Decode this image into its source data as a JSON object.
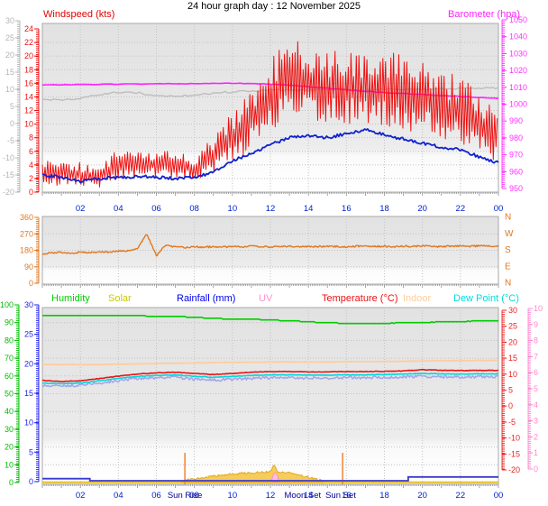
{
  "title": "24 hour graph day : 12 November 2025",
  "labels": {
    "windspeed": "Windspeed (kts)",
    "barometer": "Barometer (hpa)"
  },
  "legend": {
    "items": [
      {
        "label": "Humidity",
        "color": "#00cc00"
      },
      {
        "label": "Solar",
        "color": "#c8c800"
      },
      {
        "label": "Rainfall (mm)",
        "color": "#0000ee"
      },
      {
        "label": "UV",
        "color": "#ff8fd0"
      },
      {
        "label": "Temperature (°C)",
        "color": "#ee1111"
      },
      {
        "label": "Indoor",
        "color": "#ffcc99"
      },
      {
        "label": "Dew Point (°C)",
        "color": "#00dddd"
      }
    ]
  },
  "x_axis": {
    "hour_labels": [
      "02",
      "04",
      "06",
      "08",
      "10",
      "12",
      "14",
      "16",
      "18",
      "20",
      "22",
      "00"
    ],
    "color": "#0022cc"
  },
  "events": [
    {
      "label": "Sun Rise",
      "hour": 7.5
    },
    {
      "label": "Moon Set",
      "hour": 13.7
    },
    {
      "label": "Sun Set",
      "hour": 15.7
    }
  ],
  "sun_marker_hours": [
    7.5,
    15.8
  ],
  "chart_data": [
    {
      "type": "line",
      "panel": "top",
      "x_range": [
        0,
        24
      ],
      "x_unit": "hour",
      "axes": {
        "windspeed_kts": {
          "min": 0,
          "max": 24,
          "step": 2,
          "color": "#ee1111"
        },
        "outer_left_unlabeled": {
          "min": -20,
          "max": 30,
          "step": 5,
          "color": "#b5b5b5"
        },
        "barometer_hpa": {
          "min": 950,
          "max": 1050,
          "step": 10,
          "color": "#ff33ff"
        }
      },
      "series": [
        {
          "name": "windspeed_gust",
          "unit": "kts",
          "color": "#ee1111",
          "hourly_max": [
            5,
            4.5,
            4.5,
            4,
            6.5,
            6,
            6.5,
            6,
            5.5,
            8,
            12,
            16,
            20,
            23,
            22,
            20.5,
            21.5,
            20,
            21,
            20,
            19.5,
            18,
            17,
            15,
            11
          ],
          "hourly_min": [
            0.5,
            0.5,
            0.5,
            0.5,
            1,
            1.5,
            2,
            2,
            1.5,
            2.5,
            4,
            5.5,
            8,
            10,
            10,
            9.5,
            9.5,
            9.5,
            9,
            8.5,
            8,
            7.5,
            6.5,
            5,
            3.5
          ]
        },
        {
          "name": "windspeed_average",
          "unit": "kts",
          "color": "#1122cc",
          "hourly": [
            2.5,
            2.2,
            1.6,
            2.0,
            2.1,
            2.3,
            2.2,
            2.0,
            2.2,
            2.9,
            4.6,
            5.6,
            7.0,
            8.0,
            8.3,
            8.0,
            8.6,
            9.2,
            8.4,
            7.8,
            7.2,
            6.6,
            6.2,
            5.2,
            4.3
          ]
        },
        {
          "name": "barometer",
          "unit": "hpa",
          "color": "#ff22ff",
          "hourly": [
            1011.5,
            1011.5,
            1011.6,
            1011.8,
            1011.8,
            1011.9,
            1012.0,
            1012.1,
            1012.2,
            1012.3,
            1012.4,
            1012.2,
            1011.8,
            1011.2,
            1010.4,
            1009.5,
            1008.5,
            1007.6,
            1006.9,
            1006.3,
            1005.7,
            1005.1,
            1004.6,
            1004.0,
            1003.5
          ]
        },
        {
          "name": "unlabeled_gray_line",
          "unit": "kts_scale",
          "color": "#bdbdbd",
          "hourly": [
            13.7,
            13.5,
            13.8,
            14.3,
            14.7,
            14.6,
            14.2,
            14.1,
            14.2,
            14.6,
            14.7,
            14.9,
            15.0,
            15.0,
            15.0,
            15.1,
            15.1,
            15.0,
            15.1,
            15.1,
            15.1,
            15.2,
            15.2,
            15.3,
            15.3
          ]
        }
      ]
    },
    {
      "type": "line",
      "panel": "middle",
      "x_range": [
        0,
        24
      ],
      "x_unit": "hour",
      "axes": {
        "wind_direction_deg": {
          "min": 0,
          "max": 360,
          "step": 90,
          "color": "#e07820"
        },
        "compass_labels": [
          "N",
          "W",
          "S",
          "E",
          "N"
        ]
      },
      "series": [
        {
          "name": "wind_direction",
          "unit": "deg",
          "color": "#e07820",
          "half_hourly": [
            160,
            166,
            168,
            164,
            170,
            168,
            171,
            169,
            174,
            178,
            190,
            268,
            150,
            210,
            198,
            196,
            199,
            197,
            200,
            198,
            201,
            199,
            202,
            200,
            198,
            201,
            203,
            199,
            202,
            200,
            203,
            201,
            199,
            202,
            204,
            200,
            202,
            199,
            203,
            201,
            204,
            202,
            200,
            203,
            205,
            202,
            204,
            203,
            205
          ]
        }
      ]
    },
    {
      "type": "line",
      "panel": "bottom",
      "x_range": [
        0,
        24
      ],
      "x_unit": "hour",
      "axes": {
        "humidity_pct": {
          "min": 0,
          "max": 100,
          "step": 10,
          "color": "#00bb00"
        },
        "rainfall_mm": {
          "min": 0,
          "max": 30,
          "step": 5,
          "color": "#2222ee"
        },
        "temperature_c": {
          "min": -20,
          "max": 30,
          "step": 5,
          "color": "#ee2222"
        },
        "uv_index": {
          "min": 0,
          "max": 10,
          "step": 1,
          "color": "#ff88cc"
        }
      },
      "series": [
        {
          "name": "humidity",
          "unit": "%",
          "color": "#00cc00",
          "hourly": [
            94,
            94,
            94,
            94,
            94,
            94,
            93.5,
            93.5,
            93,
            92.5,
            92,
            92,
            91.5,
            91,
            90.5,
            90,
            89.5,
            89.5,
            89.5,
            90,
            90,
            90.5,
            90.5,
            91,
            91
          ]
        },
        {
          "name": "indoor_temperature",
          "unit": "°C",
          "color": "#ffcc9e",
          "hourly": [
            13.0,
            13.0,
            13.0,
            13.0,
            13.1,
            13.2,
            13.3,
            13.4,
            13.5,
            13.6,
            13.7,
            13.7,
            13.8,
            13.8,
            13.8,
            13.8,
            13.9,
            13.9,
            14.0,
            14.0,
            14.1,
            14.2,
            14.2,
            14.3,
            14.3
          ]
        },
        {
          "name": "temperature",
          "unit": "°C",
          "color": "#ea1212",
          "hourly": [
            8.0,
            7.7,
            7.9,
            8.6,
            9.4,
            10.0,
            10.4,
            10.6,
            10.2,
            9.9,
            10.2,
            10.6,
            10.8,
            10.8,
            10.7,
            10.7,
            10.8,
            10.8,
            10.9,
            11.0,
            11.4,
            11.2,
            11.1,
            11.2,
            11.2
          ]
        },
        {
          "name": "dew_point",
          "unit": "°C",
          "color": "#00d9d9",
          "hourly": [
            7.2,
            7.0,
            7.2,
            7.9,
            8.7,
            9.3,
            9.6,
            9.8,
            9.3,
            9.0,
            9.3,
            9.6,
            9.8,
            9.8,
            9.7,
            9.7,
            9.8,
            9.8,
            9.9,
            10.0,
            10.2,
            10.1,
            10.0,
            10.1,
            10.1
          ]
        },
        {
          "name": "unlabeled_light_blue_line",
          "unit": "°C",
          "color": "#a0a6ee",
          "hourly": [
            6.5,
            6.3,
            6.5,
            7.2,
            8.0,
            8.6,
            8.9,
            9.0,
            8.4,
            8.1,
            8.4,
            8.7,
            8.9,
            8.9,
            8.8,
            8.8,
            8.9,
            8.9,
            9.0,
            9.1,
            9.3,
            9.2,
            9.1,
            9.2,
            9.2
          ]
        },
        {
          "name": "solar",
          "color": "#e2a81c",
          "fill": "#f5c84e",
          "daylight_hours": [
            7.35,
            14.75
          ],
          "hourly": [
            0,
            0,
            0,
            0,
            0,
            0,
            0,
            0.1,
            0.6,
            1.1,
            1.5,
            1.7,
            2.0,
            1.7,
            0.9,
            0,
            0,
            0,
            0,
            0,
            0,
            0,
            0,
            0,
            0
          ],
          "midday_spike": {
            "center_hour": 12.2,
            "height": 1.2,
            "half_width_hours": 0.12
          }
        },
        {
          "name": "uv",
          "color": "#ff8fc8",
          "fill": "#ffc0de",
          "dome": {
            "center_hour": 12.25,
            "height": 0.55,
            "half_width_hours": 0.2
          }
        },
        {
          "name": "rainfall",
          "unit": "mm",
          "color": "#3a3ace",
          "step_points": [
            [
              0,
              0.5
            ],
            [
              2.4,
              0.5
            ],
            [
              2.5,
              0.15
            ],
            [
              19.1,
              0.15
            ],
            [
              19.25,
              0.8
            ],
            [
              24,
              0.8
            ]
          ]
        }
      ]
    }
  ]
}
